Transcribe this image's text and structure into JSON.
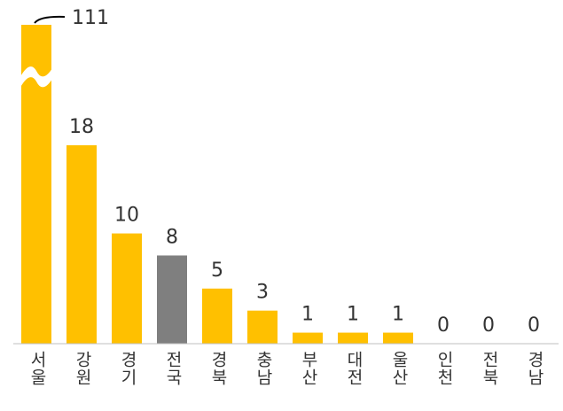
{
  "chart_data": {
    "type": "bar",
    "categories": [
      "서울",
      "강원",
      "경기",
      "전국",
      "경북",
      "충남",
      "부산",
      "대전",
      "울산",
      "인천",
      "전북",
      "경남"
    ],
    "values": [
      111,
      18,
      10,
      8,
      5,
      3,
      1,
      1,
      1,
      0,
      0,
      0
    ],
    "color": "#ffc000",
    "highlight": {
      "category": "전국",
      "color": "#7f7f7f"
    },
    "axis_break": true
  }
}
